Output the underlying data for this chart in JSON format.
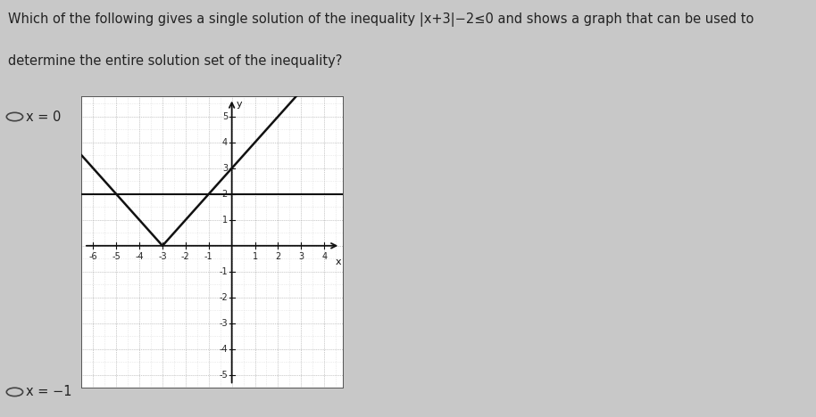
{
  "question_line1": "Which of the following gives a single solution of the inequality |x+3|−2≤0 and shows a graph that can be used to",
  "question_line2": "determine the entire solution set of the inequality?",
  "option1": "x = 0",
  "option2": "x = −1",
  "bg_color": "#c8c8c8",
  "graph_bg": "#ffffff",
  "xlim": [
    -6.5,
    4.8
  ],
  "ylim": [
    -5.5,
    5.8
  ],
  "xticks": [
    -6,
    -5,
    -4,
    -3,
    -2,
    -1,
    1,
    2,
    3,
    4
  ],
  "yticks": [
    -5,
    -4,
    -3,
    -2,
    -1,
    1,
    2,
    3,
    4,
    5
  ],
  "v_curve_color": "#111111",
  "h_line_color": "#111111",
  "h_line_y": 2,
  "vertex_x": -3,
  "vertex_y": 0,
  "axis_color": "#111111",
  "text_color": "#222222",
  "font_size_question": 10.5,
  "font_size_option": 10.5,
  "font_size_tick": 7,
  "grid_color": "#aaaaaa",
  "minor_grid_color": "#cccccc"
}
